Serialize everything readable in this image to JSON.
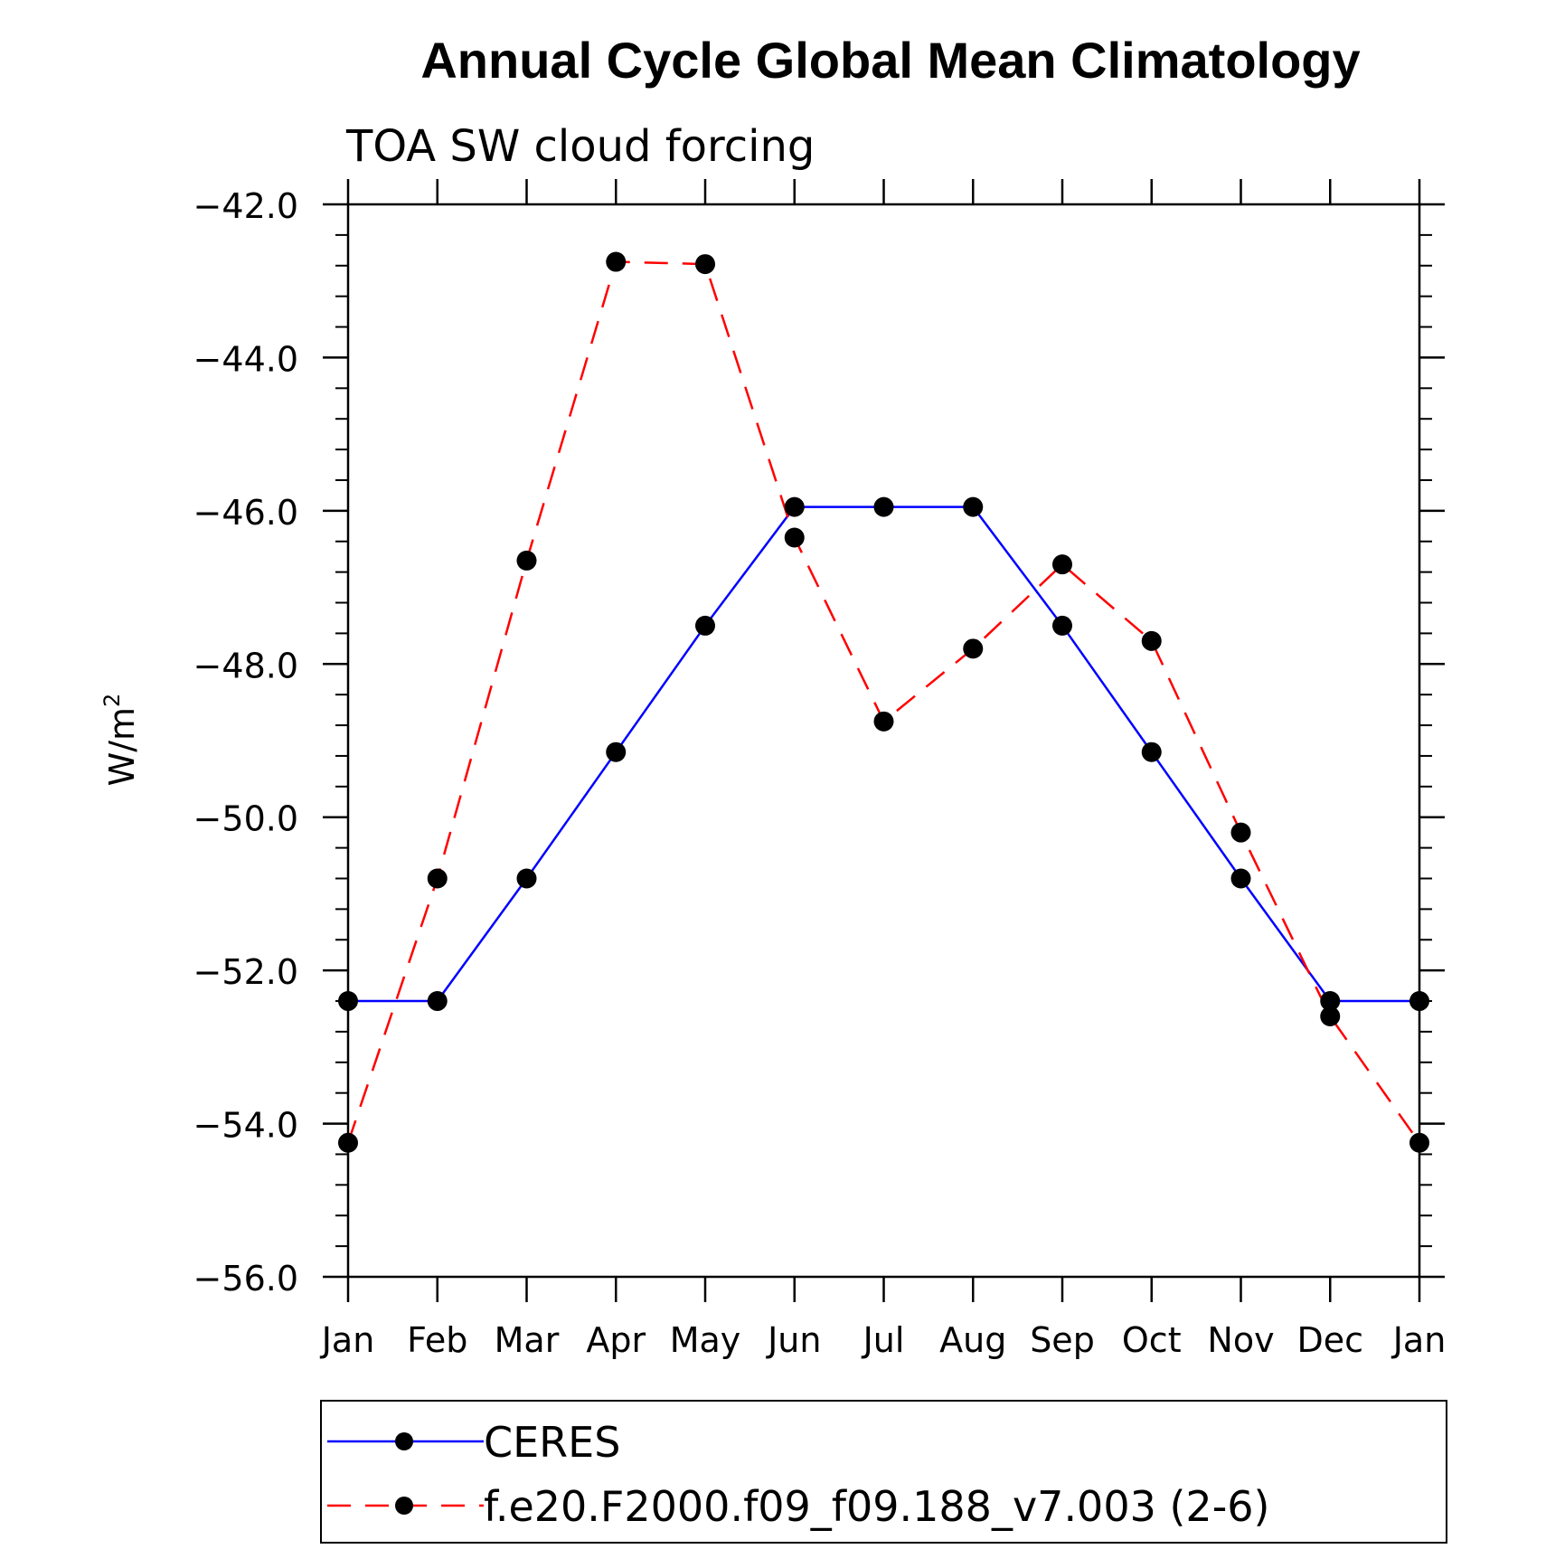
{
  "chart_data": {
    "type": "line",
    "title": "Annual Cycle Global Mean Climatology",
    "subtitle": "TOA SW cloud forcing",
    "ylabel": "W/m",
    "ylabel_superscript": "2",
    "xlabel": "",
    "ylim": [
      -56.0,
      -42.0
    ],
    "yticks": [
      "-42.0",
      "-44.0",
      "-46.0",
      "-48.0",
      "-50.0",
      "-52.0",
      "-54.0",
      "-56.0"
    ],
    "categories": [
      "Jan",
      "Feb",
      "Mar",
      "Apr",
      "May",
      "Jun",
      "Jul",
      "Aug",
      "Sep",
      "Oct",
      "Nov",
      "Dec",
      "Jan"
    ],
    "grid": false,
    "legend_position": "bottom",
    "series": [
      {
        "name": "CERES",
        "color": "#0000ff",
        "dash": "solid",
        "marker": "filled-circle",
        "values": [
          -52.4,
          -52.4,
          -50.8,
          -49.15,
          -47.5,
          -45.95,
          -45.95,
          -45.95,
          -47.5,
          -49.15,
          -50.8,
          -52.4,
          -52.4
        ]
      },
      {
        "name": "f.e20.F2000.f09_f09.188_v7.003 (2-6)",
        "color": "#ff0000",
        "dash": "dashed",
        "marker": "filled-circle",
        "values": [
          -54.25,
          -50.8,
          -46.65,
          -42.75,
          -42.78,
          -46.35,
          -48.75,
          -47.8,
          -46.7,
          -47.7,
          -50.2,
          -52.6,
          -54.25
        ]
      }
    ]
  }
}
